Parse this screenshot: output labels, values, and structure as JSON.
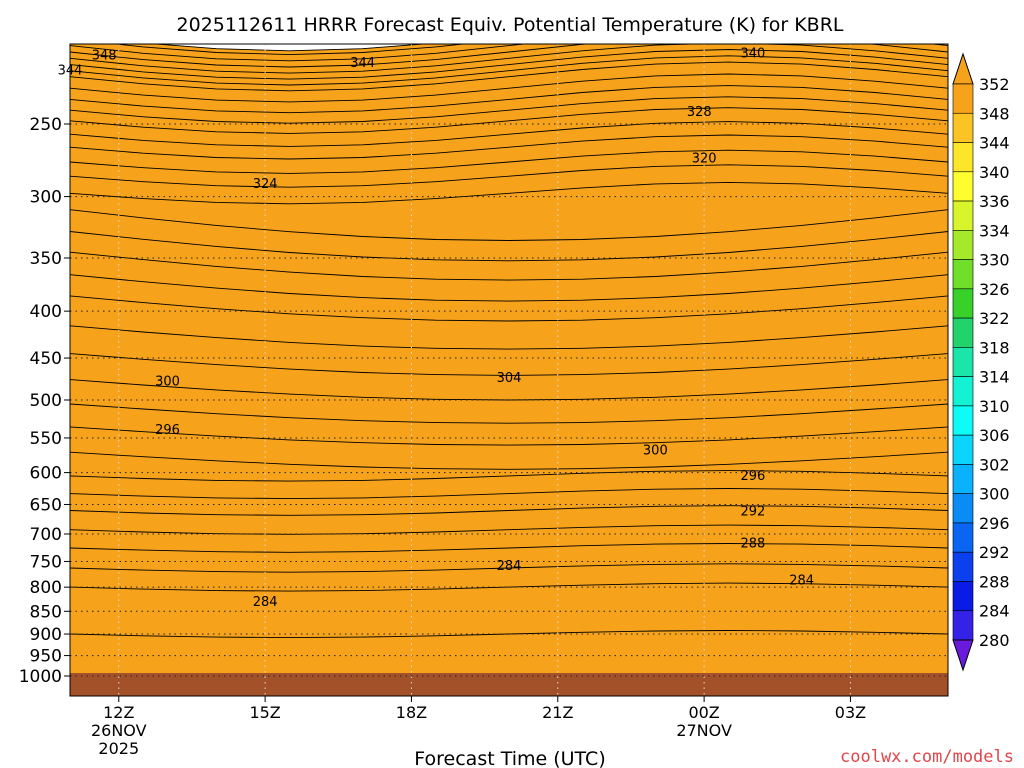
{
  "chart_data": {
    "type": "heatmap",
    "title": "2025112611 HRRR Forecast Equiv. Potential Temperature (K) for KBRL",
    "xlabel": "Forecast Time (UTC)",
    "ylabel": "",
    "watermark": "coolwx.com/models",
    "x_ticks": [
      {
        "label": "12Z",
        "sub": [
          "26NOV",
          "2025"
        ]
      },
      {
        "label": "15Z",
        "sub": []
      },
      {
        "label": "18Z",
        "sub": []
      },
      {
        "label": "21Z",
        "sub": []
      },
      {
        "label": "00Z",
        "sub": [
          "27NOV"
        ]
      },
      {
        "label": "03Z",
        "sub": []
      }
    ],
    "x_hours": [
      0,
      3,
      6,
      9,
      12,
      15
    ],
    "xlim_hours": [
      -1,
      17
    ],
    "y_ticks": [
      "250",
      "300",
      "350",
      "400",
      "450",
      "500",
      "550",
      "600",
      "650",
      "700",
      "750",
      "800",
      "850",
      "900",
      "950",
      "1000"
    ],
    "ylim_hpa": [
      200,
      1000
    ],
    "log_pressure_axis": true,
    "grid": true,
    "legend": "right",
    "colorbar": {
      "levels": [
        352,
        348,
        344,
        340,
        336,
        334,
        330,
        326,
        322,
        318,
        314,
        310,
        306,
        302,
        300,
        296,
        292,
        288,
        284,
        280
      ],
      "colors": [
        "#f7a21b",
        "#fbc324",
        "#fde52a",
        "#fefe2e",
        "#d8f52b",
        "#a4ea2a",
        "#6fdf2a",
        "#37d12a",
        "#21d36a",
        "#19e6a8",
        "#13f2d2",
        "#0dfcf6",
        "#0ad6fd",
        "#0ab2fd",
        "#0a8cf6",
        "#0a66f2",
        "#0a40ee",
        "#0a1be6",
        "#3422e6",
        "#6a1adc"
      ]
    },
    "ground_color": "#a35128",
    "contour_labels": [
      {
        "text": "348",
        "hour": -0.3,
        "hpa": 210
      },
      {
        "text": "344",
        "hour": -1.0,
        "hpa": 218
      },
      {
        "text": "344",
        "hour": 5.0,
        "hpa": 214
      },
      {
        "text": "340",
        "hour": 13.0,
        "hpa": 209
      },
      {
        "text": "328",
        "hour": 11.9,
        "hpa": 242
      },
      {
        "text": "320",
        "hour": 12.0,
        "hpa": 272
      },
      {
        "text": "324",
        "hour": 3.0,
        "hpa": 290
      },
      {
        "text": "300",
        "hour": 1.0,
        "hpa": 476
      },
      {
        "text": "304",
        "hour": 8.0,
        "hpa": 472
      },
      {
        "text": "296",
        "hour": 1.0,
        "hpa": 538
      },
      {
        "text": "300",
        "hour": 11.0,
        "hpa": 566
      },
      {
        "text": "296",
        "hour": 13.0,
        "hpa": 604
      },
      {
        "text": "292",
        "hour": 13.0,
        "hpa": 660
      },
      {
        "text": "288",
        "hour": 13.0,
        "hpa": 715
      },
      {
        "text": "284",
        "hour": 8.0,
        "hpa": 757
      },
      {
        "text": "284",
        "hour": 14.0,
        "hpa": 785
      },
      {
        "text": "284",
        "hour": 3.0,
        "hpa": 828
      }
    ]
  }
}
